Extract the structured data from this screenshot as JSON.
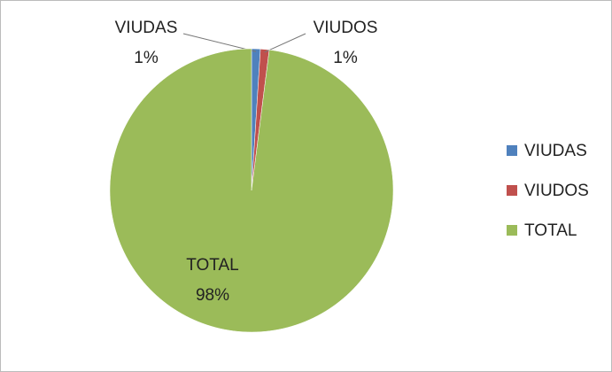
{
  "chart_data": {
    "type": "pie",
    "categories": [
      "VIUDAS",
      "VIUDOS",
      "TOTAL"
    ],
    "values": [
      1,
      1,
      98
    ],
    "value_labels": [
      "1%",
      "1%",
      "98%"
    ],
    "colors": [
      "#4f81bd",
      "#c0504d",
      "#9bbb59"
    ],
    "legend": "right"
  }
}
